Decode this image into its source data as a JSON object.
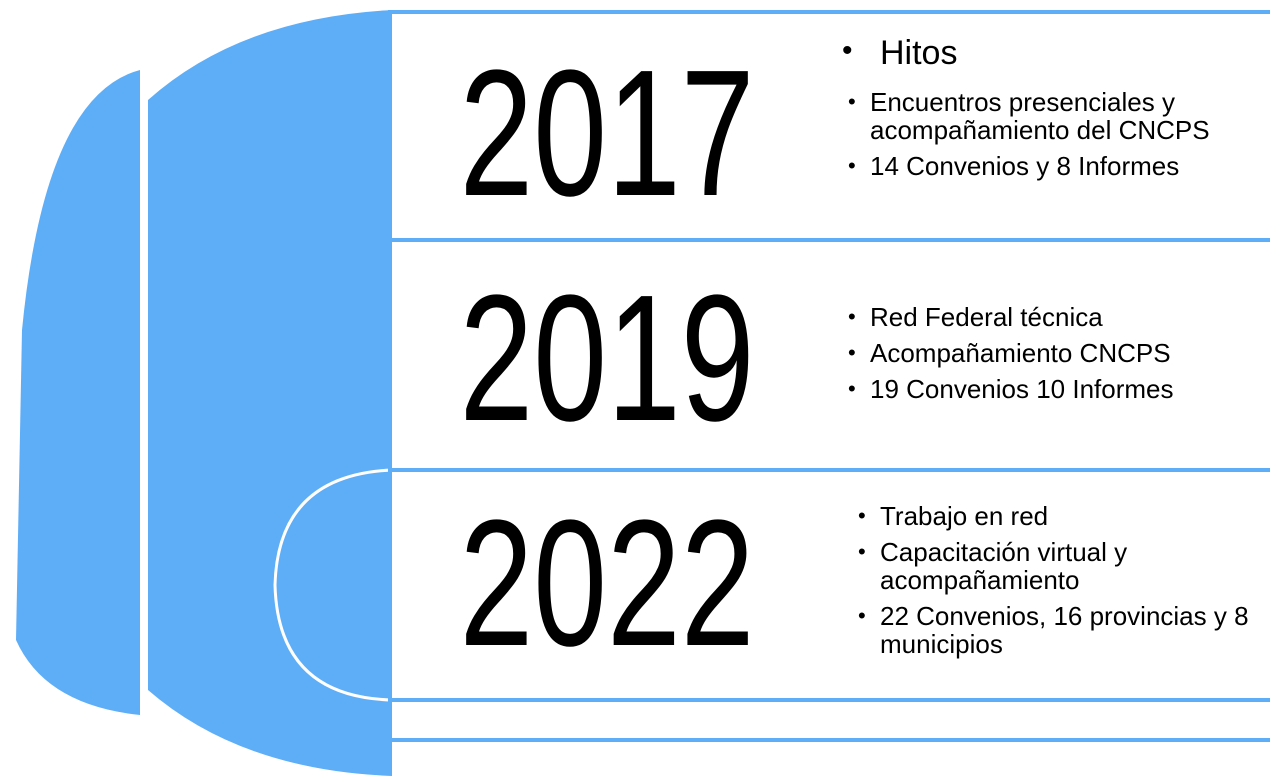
{
  "rows": [
    {
      "year": "2017",
      "heading": "Hitos",
      "items": [
        "Encuentros presenciales y acompañamiento del CNCPS",
        "14 Convenios y 8 Informes"
      ]
    },
    {
      "year": "2019",
      "items": [
        "Red Federal técnica",
        "Acompañamiento CNCPS",
        "19 Convenios 10 Informes"
      ]
    },
    {
      "year": "2022",
      "items": [
        "Trabajo en red",
        "Capacitación virtual y acompañamiento",
        "22 Convenios, 16 provincias y 8 municipios"
      ]
    }
  ]
}
